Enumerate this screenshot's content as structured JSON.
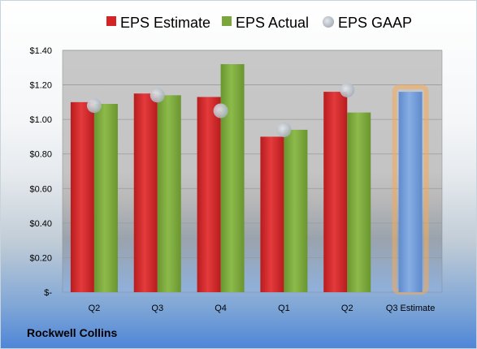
{
  "company_label": "Rockwell Collins",
  "chart_data": {
    "type": "bar",
    "categories": [
      "Q2",
      "Q3",
      "Q4",
      "Q1",
      "Q2",
      "Q3 Estimate"
    ],
    "series": [
      {
        "name": "EPS Estimate",
        "color": "#d42426",
        "values": [
          1.1,
          1.15,
          1.13,
          0.9,
          1.16,
          null
        ]
      },
      {
        "name": "EPS Actual",
        "color": "#7aa63a",
        "values": [
          1.09,
          1.14,
          1.32,
          0.94,
          1.04,
          null
        ]
      },
      {
        "name": "EPS GAAP",
        "color": "#b9c0c8",
        "type": "marker",
        "values": [
          1.08,
          1.14,
          1.05,
          0.94,
          1.17,
          null
        ]
      }
    ],
    "estimate_bar": {
      "category": "Q3 Estimate",
      "value": 1.16,
      "color": "#6f9ad6",
      "highlight": "#f3a95a"
    },
    "y_tick_labels": [
      "$-",
      "$0.20",
      "$0.40",
      "$0.60",
      "$0.80",
      "$1.00",
      "$1.20",
      "$1.40"
    ],
    "ylim": [
      0,
      1.4
    ],
    "grid": true,
    "legend": "top"
  }
}
